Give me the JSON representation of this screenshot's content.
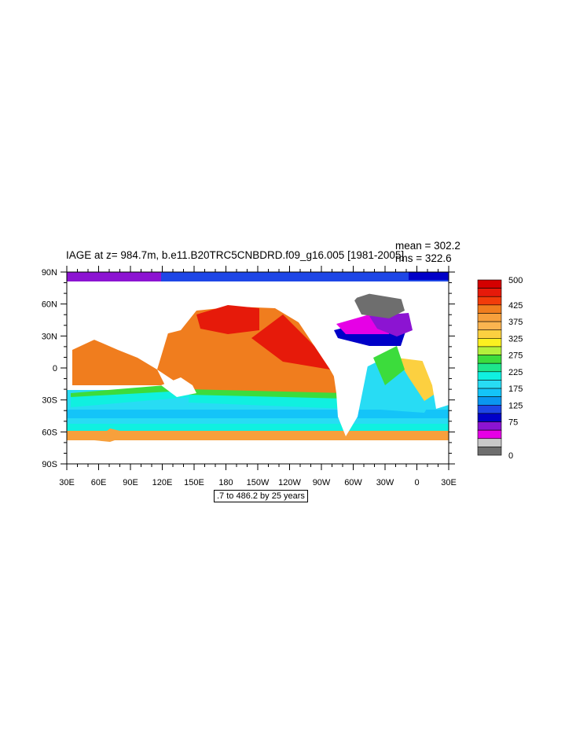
{
  "plot": {
    "title": "IAGE at z= 984.7m, b.e11.B20TRC5CNBDRD.f09_g16.005 [1981-2005]",
    "mean_label": "mean = 302.2",
    "rms_label": "rms = 322.6",
    "contour_info": ".7 to 486.2 by 25 years"
  },
  "axes": {
    "x_ticks": [
      "30E",
      "60E",
      "90E",
      "120E",
      "150E",
      "180",
      "150W",
      "120W",
      "90W",
      "60W",
      "30W",
      "0",
      "30E"
    ],
    "y_ticks": [
      "90N",
      "60N",
      "30N",
      "0",
      "30S",
      "60S",
      "90S"
    ]
  },
  "colorbar": {
    "labels": [
      "500",
      "425",
      "375",
      "325",
      "275",
      "225",
      "175",
      "125",
      "75",
      "0"
    ],
    "colors": [
      "#d40000",
      "#e61a0a",
      "#f23c0a",
      "#f07d1e",
      "#f7a03c",
      "#fbb450",
      "#fcd040",
      "#fcf020",
      "#b4f03c",
      "#3cdc3c",
      "#1ee68c",
      "#10f0e0",
      "#28dcf4",
      "#14c4f8",
      "#0a96f0",
      "#1e46e6",
      "#0000c8",
      "#8c14d2",
      "#e600e6",
      "#c8c8c8",
      "#6e6e6e"
    ]
  },
  "colors": {
    "land": "#ffffff",
    "arctic": "#7814d2",
    "ice_gray": "#6e6e6e"
  }
}
